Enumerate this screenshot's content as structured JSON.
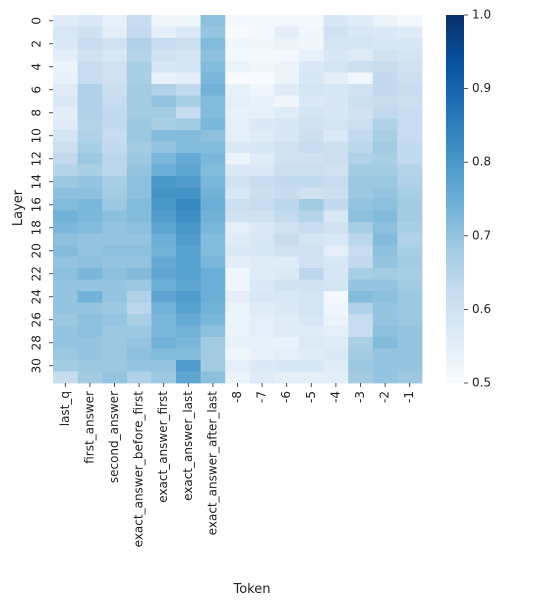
{
  "chart_data": {
    "type": "heatmap",
    "xlabel": "Token",
    "ylabel": "Layer",
    "colormap": "Blues",
    "colorbar": {
      "min": 0.5,
      "max": 1.0,
      "ticks": [
        "0.5",
        "0.6",
        "0.7",
        "0.8",
        "0.9",
        "1.0"
      ]
    },
    "columns": [
      "last_q",
      "first_answer",
      "second_answer",
      "exact_answer_before_first",
      "exact_answer_first",
      "exact_answer_last",
      "exact_answer_after_last",
      "-8",
      "-7",
      "-6",
      "-5",
      "-4",
      "-3",
      "-2",
      "-1"
    ],
    "row_tick_labels": [
      "0",
      "2",
      "4",
      "6",
      "8",
      "10",
      "12",
      "14",
      "16",
      "18",
      "20",
      "22",
      "24",
      "26",
      "28",
      "30"
    ],
    "rows": [
      0,
      1,
      2,
      3,
      4,
      5,
      6,
      7,
      8,
      9,
      10,
      11,
      12,
      13,
      14,
      15,
      16,
      17,
      18,
      19,
      20,
      21,
      22,
      23,
      24,
      25,
      26,
      27,
      28,
      29,
      30,
      31
    ],
    "values": [
      [
        0.56,
        0.57,
        0.54,
        0.62,
        0.52,
        0.52,
        0.71,
        0.51,
        0.51,
        0.51,
        0.51,
        0.58,
        0.56,
        0.53,
        0.51
      ],
      [
        0.58,
        0.6,
        0.55,
        0.63,
        0.55,
        0.57,
        0.7,
        0.5,
        0.51,
        0.55,
        0.52,
        0.6,
        0.58,
        0.57,
        0.56
      ],
      [
        0.57,
        0.62,
        0.6,
        0.66,
        0.62,
        0.61,
        0.72,
        0.52,
        0.52,
        0.53,
        0.52,
        0.59,
        0.59,
        0.58,
        0.58
      ],
      [
        0.55,
        0.6,
        0.58,
        0.65,
        0.6,
        0.59,
        0.71,
        0.51,
        0.51,
        0.51,
        0.54,
        0.58,
        0.56,
        0.6,
        0.59
      ],
      [
        0.53,
        0.62,
        0.6,
        0.67,
        0.58,
        0.59,
        0.72,
        0.53,
        0.52,
        0.53,
        0.57,
        0.59,
        0.61,
        0.62,
        0.6
      ],
      [
        0.54,
        0.62,
        0.6,
        0.67,
        0.54,
        0.55,
        0.73,
        0.5,
        0.5,
        0.53,
        0.58,
        0.55,
        0.52,
        0.63,
        0.61
      ],
      [
        0.56,
        0.66,
        0.61,
        0.68,
        0.66,
        0.63,
        0.74,
        0.54,
        0.52,
        0.56,
        0.59,
        0.58,
        0.6,
        0.63,
        0.62
      ],
      [
        0.57,
        0.66,
        0.62,
        0.68,
        0.7,
        0.67,
        0.72,
        0.55,
        0.54,
        0.52,
        0.57,
        0.58,
        0.61,
        0.62,
        0.61
      ],
      [
        0.55,
        0.66,
        0.63,
        0.68,
        0.68,
        0.62,
        0.72,
        0.54,
        0.54,
        0.56,
        0.59,
        0.58,
        0.6,
        0.63,
        0.62
      ],
      [
        0.56,
        0.65,
        0.63,
        0.69,
        0.67,
        0.68,
        0.73,
        0.55,
        0.57,
        0.58,
        0.6,
        0.59,
        0.61,
        0.66,
        0.62
      ],
      [
        0.59,
        0.66,
        0.62,
        0.69,
        0.72,
        0.72,
        0.71,
        0.55,
        0.56,
        0.58,
        0.61,
        0.57,
        0.63,
        0.67,
        0.62
      ],
      [
        0.61,
        0.67,
        0.63,
        0.68,
        0.7,
        0.72,
        0.72,
        0.57,
        0.58,
        0.6,
        0.62,
        0.61,
        0.64,
        0.68,
        0.63
      ],
      [
        0.63,
        0.69,
        0.64,
        0.69,
        0.73,
        0.76,
        0.73,
        0.53,
        0.56,
        0.6,
        0.6,
        0.61,
        0.66,
        0.67,
        0.63
      ],
      [
        0.65,
        0.67,
        0.64,
        0.7,
        0.75,
        0.77,
        0.72,
        0.57,
        0.57,
        0.61,
        0.61,
        0.6,
        0.68,
        0.68,
        0.65
      ],
      [
        0.69,
        0.7,
        0.67,
        0.71,
        0.8,
        0.79,
        0.73,
        0.6,
        0.62,
        0.63,
        0.63,
        0.62,
        0.69,
        0.69,
        0.66
      ],
      [
        0.71,
        0.71,
        0.68,
        0.71,
        0.81,
        0.81,
        0.74,
        0.58,
        0.61,
        0.62,
        0.6,
        0.61,
        0.69,
        0.7,
        0.67
      ],
      [
        0.72,
        0.73,
        0.69,
        0.72,
        0.8,
        0.83,
        0.75,
        0.61,
        0.62,
        0.64,
        0.68,
        0.63,
        0.7,
        0.71,
        0.68
      ],
      [
        0.74,
        0.73,
        0.71,
        0.72,
        0.79,
        0.82,
        0.74,
        0.6,
        0.6,
        0.63,
        0.65,
        0.58,
        0.71,
        0.72,
        0.68
      ],
      [
        0.73,
        0.72,
        0.7,
        0.71,
        0.77,
        0.8,
        0.73,
        0.55,
        0.57,
        0.6,
        0.62,
        0.6,
        0.67,
        0.71,
        0.67
      ],
      [
        0.71,
        0.7,
        0.7,
        0.7,
        0.75,
        0.79,
        0.72,
        0.56,
        0.58,
        0.62,
        0.59,
        0.58,
        0.64,
        0.72,
        0.66
      ],
      [
        0.72,
        0.7,
        0.71,
        0.71,
        0.74,
        0.78,
        0.72,
        0.57,
        0.58,
        0.6,
        0.6,
        0.55,
        0.62,
        0.71,
        0.67
      ],
      [
        0.7,
        0.71,
        0.7,
        0.7,
        0.76,
        0.78,
        0.73,
        0.55,
        0.56,
        0.56,
        0.6,
        0.58,
        0.63,
        0.7,
        0.68
      ],
      [
        0.71,
        0.73,
        0.71,
        0.72,
        0.77,
        0.78,
        0.75,
        0.52,
        0.56,
        0.57,
        0.64,
        0.58,
        0.67,
        0.68,
        0.67
      ],
      [
        0.7,
        0.7,
        0.7,
        0.69,
        0.75,
        0.77,
        0.75,
        0.52,
        0.57,
        0.6,
        0.6,
        0.59,
        0.7,
        0.7,
        0.68
      ],
      [
        0.7,
        0.74,
        0.7,
        0.66,
        0.77,
        0.79,
        0.75,
        0.55,
        0.58,
        0.58,
        0.59,
        0.51,
        0.72,
        0.71,
        0.69
      ],
      [
        0.7,
        0.7,
        0.69,
        0.64,
        0.74,
        0.78,
        0.74,
        0.53,
        0.56,
        0.57,
        0.59,
        0.52,
        0.66,
        0.7,
        0.69
      ],
      [
        0.69,
        0.71,
        0.7,
        0.67,
        0.73,
        0.76,
        0.73,
        0.53,
        0.55,
        0.56,
        0.58,
        0.53,
        0.62,
        0.7,
        0.69
      ],
      [
        0.7,
        0.71,
        0.69,
        0.69,
        0.73,
        0.74,
        0.71,
        0.53,
        0.55,
        0.56,
        0.56,
        0.55,
        0.62,
        0.71,
        0.7
      ],
      [
        0.7,
        0.7,
        0.69,
        0.7,
        0.74,
        0.73,
        0.68,
        0.54,
        0.54,
        0.54,
        0.57,
        0.56,
        0.67,
        0.72,
        0.7
      ],
      [
        0.69,
        0.7,
        0.69,
        0.71,
        0.72,
        0.72,
        0.68,
        0.52,
        0.54,
        0.55,
        0.56,
        0.57,
        0.68,
        0.7,
        0.7
      ],
      [
        0.68,
        0.69,
        0.69,
        0.7,
        0.7,
        0.79,
        0.68,
        0.55,
        0.57,
        0.58,
        0.58,
        0.56,
        0.69,
        0.7,
        0.7
      ],
      [
        0.62,
        0.68,
        0.7,
        0.66,
        0.69,
        0.77,
        0.71,
        0.53,
        0.56,
        0.55,
        0.55,
        0.55,
        0.68,
        0.7,
        0.69
      ]
    ]
  }
}
